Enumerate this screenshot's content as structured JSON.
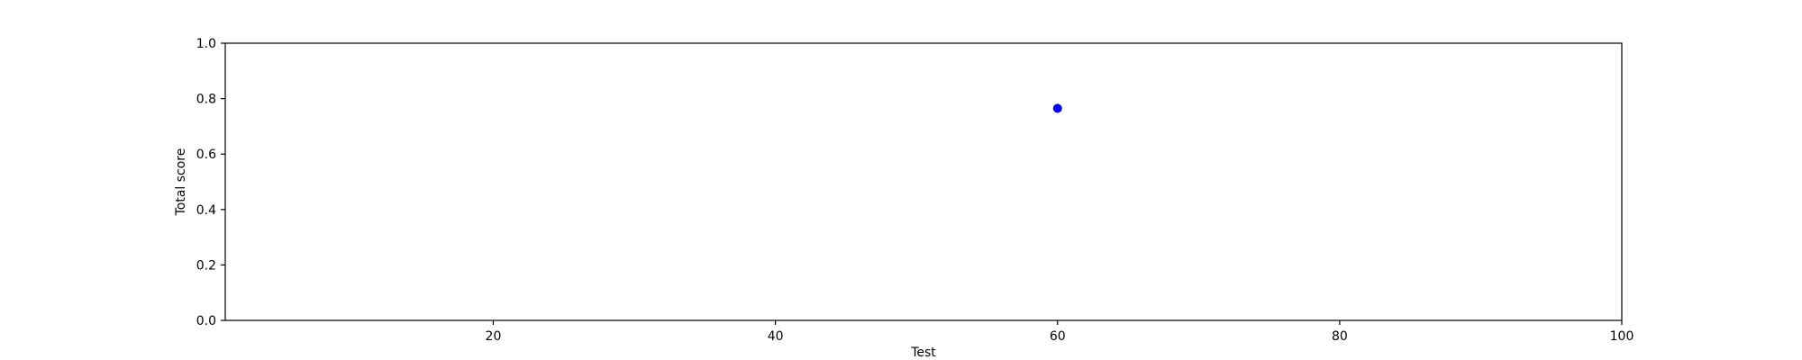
{
  "chart_data": {
    "type": "scatter",
    "title": "",
    "xlabel": "Test",
    "ylabel": "Total score",
    "xlim": [
      1,
      100
    ],
    "ylim": [
      0.0,
      1.0
    ],
    "x_ticks": [
      20,
      40,
      60,
      80,
      100
    ],
    "x_tick_labels": [
      "20",
      "40",
      "60",
      "80",
      "100"
    ],
    "y_ticks": [
      0.0,
      0.2,
      0.4,
      0.6,
      0.8,
      1.0
    ],
    "y_tick_labels": [
      "0.0",
      "0.2",
      "0.4",
      "0.6",
      "0.8",
      "1.0"
    ],
    "grid": false,
    "series": [
      {
        "color": "#0000ff",
        "points": [
          {
            "x": 60,
            "y": 0.765
          }
        ]
      }
    ]
  }
}
